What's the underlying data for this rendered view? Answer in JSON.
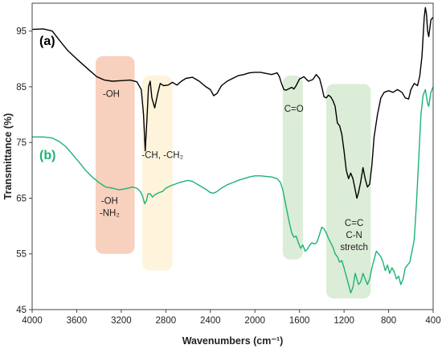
{
  "chart_data": {
    "type": "line",
    "xlabel": "Wavenumbers (cm⁻¹)",
    "ylabel": "Transmittance (%)",
    "xlim": [
      4000,
      400
    ],
    "ylim": [
      45,
      100
    ],
    "x_reversed": true,
    "xticks": [
      4000,
      3600,
      3200,
      2800,
      2400,
      2000,
      1600,
      1200,
      800,
      400
    ],
    "xtick_labels": [
      "4000",
      "3600",
      "3200",
      "2800",
      "2400",
      "2000",
      "1600",
      "1200",
      "800",
      "400"
    ],
    "yticks": [
      45,
      55,
      65,
      75,
      85,
      95
    ],
    "ytick_labels": [
      "45",
      "55",
      "65",
      "75",
      "85",
      "95"
    ],
    "grid": false,
    "series": [
      {
        "name": "(a)",
        "color": "#000000",
        "points": [
          [
            4000,
            95.3
          ],
          [
            3900,
            95.4
          ],
          [
            3820,
            95.0
          ],
          [
            3750,
            93.2
          ],
          [
            3680,
            91.5
          ],
          [
            3600,
            90.0
          ],
          [
            3500,
            88.2
          ],
          [
            3420,
            86.8
          ],
          [
            3350,
            86.2
          ],
          [
            3280,
            86.0
          ],
          [
            3200,
            86.1
          ],
          [
            3120,
            86.2
          ],
          [
            3060,
            85.9
          ],
          [
            3020,
            84.5
          ],
          [
            3000,
            80.0
          ],
          [
            2985,
            73.5
          ],
          [
            2970,
            79.0
          ],
          [
            2955,
            85.0
          ],
          [
            2940,
            86.0
          ],
          [
            2925,
            83.0
          ],
          [
            2900,
            81.2
          ],
          [
            2870,
            84.0
          ],
          [
            2850,
            85.6
          ],
          [
            2820,
            85.2
          ],
          [
            2780,
            85.3
          ],
          [
            2740,
            85.8
          ],
          [
            2700,
            85.3
          ],
          [
            2660,
            86.0
          ],
          [
            2620,
            86.5
          ],
          [
            2560,
            86.7
          ],
          [
            2500,
            86.0
          ],
          [
            2440,
            85.0
          ],
          [
            2400,
            84.5
          ],
          [
            2370,
            83.4
          ],
          [
            2340,
            83.8
          ],
          [
            2300,
            85.2
          ],
          [
            2250,
            86.0
          ],
          [
            2200,
            86.5
          ],
          [
            2150,
            87.0
          ],
          [
            2100,
            87.2
          ],
          [
            2050,
            87.5
          ],
          [
            2000,
            87.6
          ],
          [
            1950,
            87.6
          ],
          [
            1900,
            87.4
          ],
          [
            1850,
            87.2
          ],
          [
            1800,
            87.5
          ],
          [
            1780,
            86.8
          ],
          [
            1760,
            85.5
          ],
          [
            1740,
            84.5
          ],
          [
            1720,
            84.4
          ],
          [
            1700,
            84.6
          ],
          [
            1670,
            84.9
          ],
          [
            1650,
            84.6
          ],
          [
            1630,
            85.2
          ],
          [
            1600,
            86.4
          ],
          [
            1560,
            86.8
          ],
          [
            1520,
            86.0
          ],
          [
            1480,
            86.3
          ],
          [
            1450,
            87.2
          ],
          [
            1420,
            86.5
          ],
          [
            1400,
            85.0
          ],
          [
            1380,
            83.2
          ],
          [
            1360,
            83.0
          ],
          [
            1340,
            83.5
          ],
          [
            1320,
            83.2
          ],
          [
            1300,
            82.5
          ],
          [
            1280,
            81.5
          ],
          [
            1260,
            78.5
          ],
          [
            1240,
            78.0
          ],
          [
            1220,
            76.5
          ],
          [
            1200,
            73.5
          ],
          [
            1180,
            70.0
          ],
          [
            1160,
            68.5
          ],
          [
            1140,
            69.5
          ],
          [
            1120,
            68.5
          ],
          [
            1100,
            66.5
          ],
          [
            1085,
            65.0
          ],
          [
            1070,
            66.0
          ],
          [
            1050,
            68.0
          ],
          [
            1030,
            70.5
          ],
          [
            1010,
            68.5
          ],
          [
            990,
            67.0
          ],
          [
            970,
            67.5
          ],
          [
            950,
            71.0
          ],
          [
            930,
            76.0
          ],
          [
            900,
            80.0
          ],
          [
            870,
            83.0
          ],
          [
            840,
            84.0
          ],
          [
            800,
            84.3
          ],
          [
            760,
            84.0
          ],
          [
            720,
            84.5
          ],
          [
            680,
            84.0
          ],
          [
            650,
            83.0
          ],
          [
            620,
            82.8
          ],
          [
            600,
            84.5
          ],
          [
            570,
            85.6
          ],
          [
            540,
            85.2
          ],
          [
            520,
            87.0
          ],
          [
            500,
            90.5
          ],
          [
            480,
            97.5
          ],
          [
            470,
            99.2
          ],
          [
            460,
            98.0
          ],
          [
            450,
            95.0
          ],
          [
            440,
            94.0
          ],
          [
            420,
            97.0
          ],
          [
            400,
            97.5
          ]
        ]
      },
      {
        "name": "(b)",
        "color": "#1db375",
        "points": [
          [
            4000,
            76.0
          ],
          [
            3900,
            76.0
          ],
          [
            3820,
            75.8
          ],
          [
            3760,
            75.2
          ],
          [
            3700,
            74.3
          ],
          [
            3640,
            72.9
          ],
          [
            3580,
            71.5
          ],
          [
            3520,
            70.0
          ],
          [
            3460,
            68.8
          ],
          [
            3400,
            67.8
          ],
          [
            3340,
            67.0
          ],
          [
            3280,
            66.8
          ],
          [
            3220,
            66.5
          ],
          [
            3160,
            66.7
          ],
          [
            3100,
            67.0
          ],
          [
            3060,
            66.8
          ],
          [
            3030,
            66.2
          ],
          [
            3010,
            65.5
          ],
          [
            2990,
            64.0
          ],
          [
            2975,
            64.5
          ],
          [
            2960,
            65.8
          ],
          [
            2940,
            65.8
          ],
          [
            2920,
            65.2
          ],
          [
            2900,
            65.6
          ],
          [
            2880,
            65.8
          ],
          [
            2860,
            66.0
          ],
          [
            2830,
            66.2
          ],
          [
            2800,
            66.8
          ],
          [
            2760,
            67.2
          ],
          [
            2720,
            67.5
          ],
          [
            2680,
            67.8
          ],
          [
            2640,
            68.0
          ],
          [
            2600,
            68.2
          ],
          [
            2560,
            68.0
          ],
          [
            2500,
            67.3
          ],
          [
            2440,
            66.6
          ],
          [
            2400,
            66.0
          ],
          [
            2370,
            65.9
          ],
          [
            2340,
            66.2
          ],
          [
            2300,
            66.8
          ],
          [
            2250,
            67.4
          ],
          [
            2200,
            67.8
          ],
          [
            2150,
            68.2
          ],
          [
            2100,
            68.5
          ],
          [
            2050,
            68.8
          ],
          [
            2000,
            69.0
          ],
          [
            1950,
            69.0
          ],
          [
            1900,
            68.9
          ],
          [
            1850,
            68.8
          ],
          [
            1800,
            68.5
          ],
          [
            1770,
            67.8
          ],
          [
            1750,
            66.5
          ],
          [
            1730,
            64.5
          ],
          [
            1710,
            62.5
          ],
          [
            1690,
            60.5
          ],
          [
            1670,
            58.8
          ],
          [
            1650,
            58.0
          ],
          [
            1630,
            58.2
          ],
          [
            1610,
            57.0
          ],
          [
            1590,
            56.0
          ],
          [
            1570,
            56.6
          ],
          [
            1550,
            55.5
          ],
          [
            1530,
            55.8
          ],
          [
            1510,
            56.5
          ],
          [
            1490,
            57.0
          ],
          [
            1460,
            56.8
          ],
          [
            1440,
            57.2
          ],
          [
            1420,
            58.5
          ],
          [
            1400,
            59.8
          ],
          [
            1380,
            59.5
          ],
          [
            1360,
            58.8
          ],
          [
            1340,
            57.8
          ],
          [
            1320,
            57.0
          ],
          [
            1300,
            56.2
          ],
          [
            1280,
            55.0
          ],
          [
            1260,
            54.5
          ],
          [
            1240,
            53.5
          ],
          [
            1220,
            53.8
          ],
          [
            1200,
            52.5
          ],
          [
            1180,
            51.0
          ],
          [
            1160,
            49.5
          ],
          [
            1140,
            48.0
          ],
          [
            1120,
            49.0
          ],
          [
            1100,
            51.5
          ],
          [
            1085,
            50.5
          ],
          [
            1070,
            49.5
          ],
          [
            1050,
            50.0
          ],
          [
            1030,
            51.5
          ],
          [
            1010,
            50.5
          ],
          [
            990,
            49.5
          ],
          [
            970,
            50.5
          ],
          [
            950,
            52.5
          ],
          [
            930,
            54.0
          ],
          [
            910,
            55.5
          ],
          [
            890,
            55.0
          ],
          [
            870,
            54.5
          ],
          [
            850,
            53.5
          ],
          [
            830,
            52.0
          ],
          [
            810,
            53.0
          ],
          [
            790,
            51.5
          ],
          [
            770,
            52.5
          ],
          [
            750,
            51.8
          ],
          [
            730,
            50.5
          ],
          [
            710,
            51.0
          ],
          [
            690,
            49.5
          ],
          [
            670,
            50.5
          ],
          [
            650,
            52.5
          ],
          [
            630,
            53.0
          ],
          [
            610,
            53.5
          ],
          [
            590,
            55.5
          ],
          [
            570,
            57.5
          ],
          [
            550,
            64.0
          ],
          [
            530,
            72.0
          ],
          [
            510,
            80.0
          ],
          [
            490,
            83.5
          ],
          [
            470,
            84.5
          ],
          [
            450,
            82.0
          ],
          [
            440,
            81.5
          ],
          [
            420,
            84.0
          ],
          [
            400,
            85.0
          ]
        ]
      }
    ],
    "series_labels": [
      {
        "text": "(a)",
        "color": "#000000",
        "x": 3935,
        "y": 92.5
      },
      {
        "text": "(b)",
        "color": "#1db375",
        "x": 3935,
        "y": 72.0
      }
    ],
    "bands": [
      {
        "name": "band-oh-nh2",
        "color": "#f5c0a8",
        "x0": 3430,
        "x1": 3080,
        "y0": 55,
        "y1": 90.5
      },
      {
        "name": "band-ch-ch2",
        "color": "#fdf0cf",
        "x0": 3010,
        "x1": 2740,
        "y0": 52,
        "y1": 87
      },
      {
        "name": "band-co",
        "color": "#cfe6c9",
        "x0": 1750,
        "x1": 1570,
        "y0": 54,
        "y1": 87
      },
      {
        "name": "band-cc-cn",
        "color": "#cfe6c9",
        "x0": 1360,
        "x1": 960,
        "y0": 47,
        "y1": 85.5
      }
    ],
    "annotations": [
      {
        "lines": [
          "-OH"
        ],
        "x": 3290,
        "y": 83.2
      },
      {
        "lines": [
          "-CH, -CH₂"
        ],
        "x": 2830,
        "y": 72.2
      },
      {
        "lines": [
          "C=O"
        ],
        "x": 1650,
        "y": 80.5
      },
      {
        "lines": [
          "-OH",
          "-NH₂"
        ],
        "x": 3305,
        "y": 64.0
      },
      {
        "lines": [
          "C=C",
          "C-N",
          "stretch"
        ],
        "x": 1110,
        "y": 60.0
      }
    ]
  }
}
